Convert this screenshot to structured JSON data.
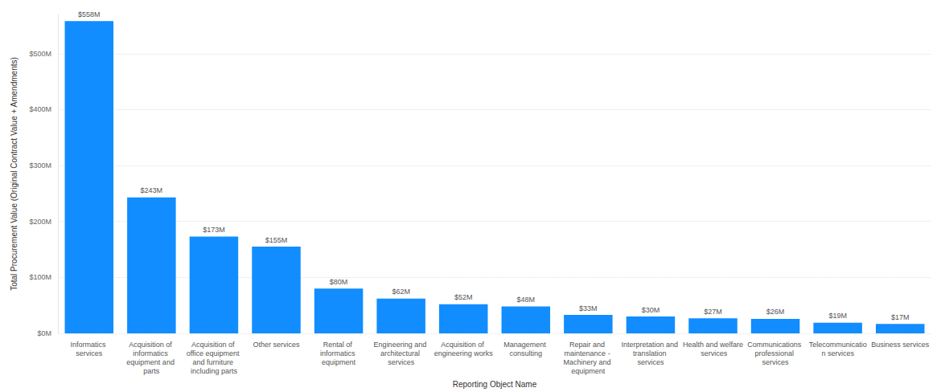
{
  "chart_data": {
    "type": "bar",
    "x_label": "Reporting Object Name",
    "y_label": "Total Procurement Value (Original Contract Value + Amendments)",
    "categories": [
      "Informatics services",
      "Acquisition of informatics equipment and parts",
      "Acquisition of office equipment and furniture including parts",
      "Other services",
      "Rental of informatics equipment",
      "Engineering and architectural services",
      "Acquisition of engineering works",
      "Management consulting",
      "Repair and maintenance - Machinery and equipment",
      "Interpretation and translation services",
      "Health and welfare services",
      "Communications professional services",
      "Telecommunication services",
      "Business services"
    ],
    "values": [
      558,
      243,
      173,
      155,
      80,
      62,
      52,
      48,
      33,
      30,
      27,
      26,
      19,
      17
    ],
    "value_labels": [
      "$558M",
      "$243M",
      "$173M",
      "$155M",
      "$80M",
      "$62M",
      "$52M",
      "$48M",
      "$33M",
      "$30M",
      "$27M",
      "$26M",
      "$19M",
      "$17M"
    ],
    "color": "#118dff",
    "ylim": [
      0,
      570
    ],
    "yticks": [
      {
        "value": 0,
        "label": "$0M"
      },
      {
        "value": 100,
        "label": "$100M"
      },
      {
        "value": 200,
        "label": "$200M"
      },
      {
        "value": 300,
        "label": "$300M"
      },
      {
        "value": 400,
        "label": "$400M"
      },
      {
        "value": 500,
        "label": "$500M"
      }
    ],
    "grid": true,
    "data_labels": true
  }
}
